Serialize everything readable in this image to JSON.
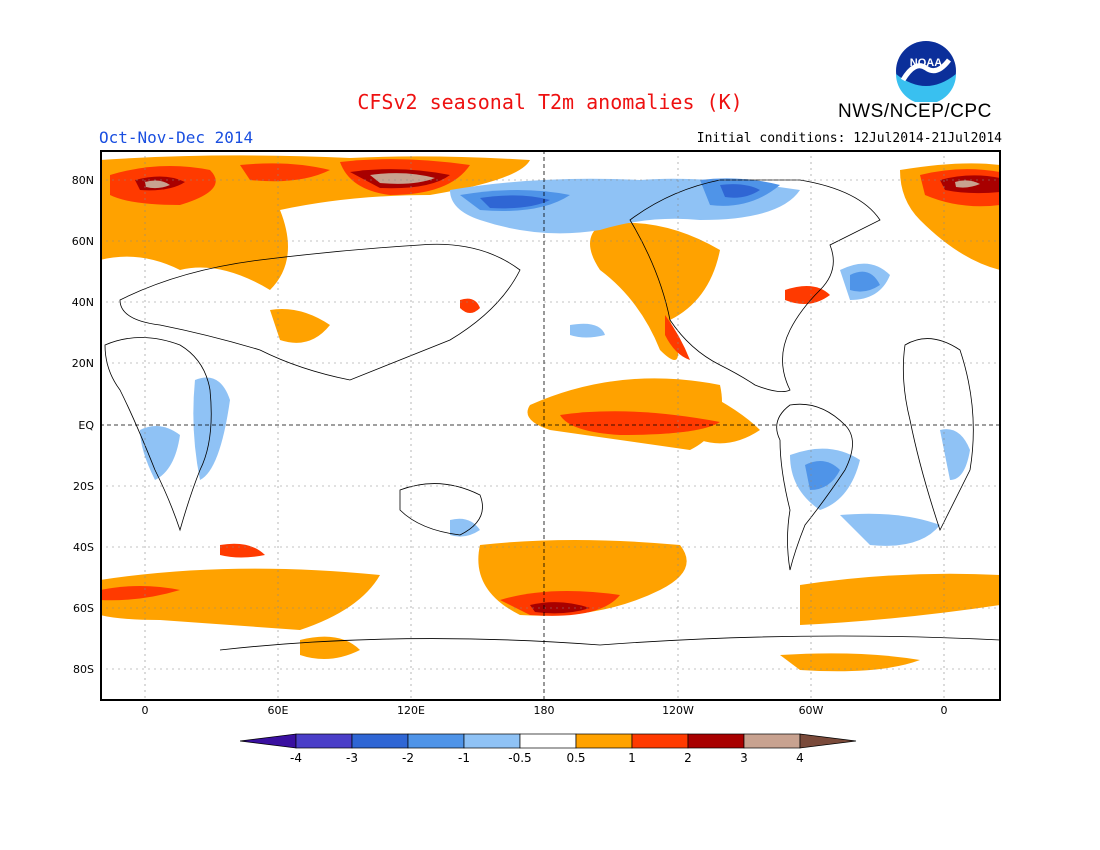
{
  "header": {
    "title": "CFSv2 seasonal T2m anomalies (K)",
    "agency": "NWS/NCEP/CPC",
    "period": "Oct-Nov-Dec 2014",
    "initial_conditions": "Initial conditions: 12Jul2014-21Jul2014",
    "logo_text": "NOAA"
  },
  "map": {
    "lat_ticks": [
      "80N",
      "60N",
      "40N",
      "20N",
      "EQ",
      "20S",
      "40S",
      "60S",
      "80S"
    ],
    "lon_ticks": [
      "0",
      "60E",
      "120E",
      "180",
      "120W",
      "60W",
      "0"
    ]
  },
  "colorbar": {
    "unit": "K",
    "tick_labels": [
      "-4",
      "-3",
      "-2",
      "-1",
      "-0.5",
      "0.5",
      "1",
      "2",
      "3",
      "4"
    ],
    "colors": [
      "#3a10a0",
      "#4a3ec8",
      "#2f66d4",
      "#4f94e8",
      "#8fc2f5",
      "#ffffff",
      "#ffa200",
      "#ff3a00",
      "#a80000",
      "#c8a290",
      "#7a4a3a"
    ]
  },
  "colors": {
    "warm_0_5": "#ffa200",
    "warm_1": "#ff3a00",
    "warm_2": "#a80000",
    "warm_3": "#c8a290",
    "cool_0_5": "#8fc2f5",
    "cool_1": "#4f94e8",
    "cool_2": "#2f66d4",
    "cool_3": "#4a3ec8"
  }
}
